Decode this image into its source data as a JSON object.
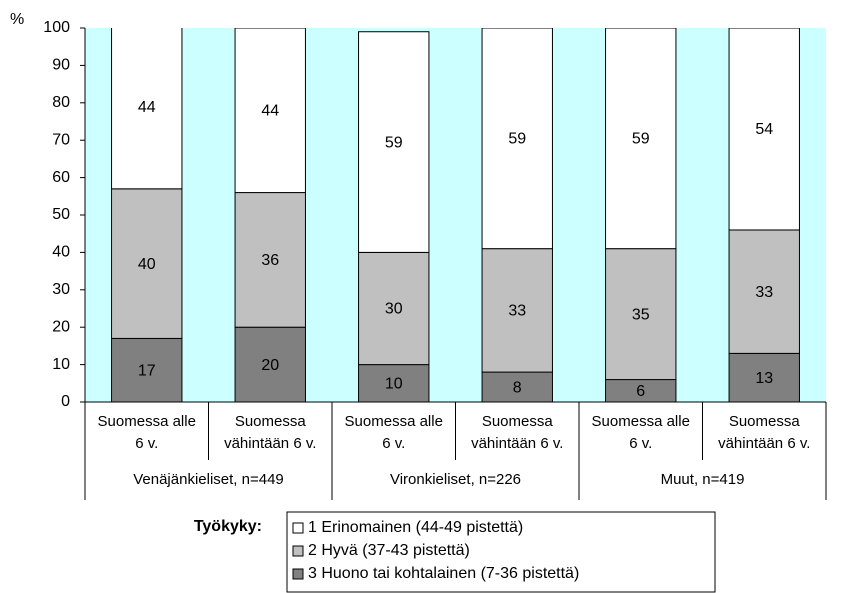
{
  "chart_data": {
    "type": "stacked_bar",
    "ylabel": "%",
    "categories": [
      "Suomessa alle 6 v.",
      "Suomessa vähintään 6 v.",
      "Suomessa alle 6 v.",
      "Suomessa vähintään 6 v.",
      "Suomessa alle 6 v.",
      "Suomessa vähintään 6 v."
    ],
    "groups": [
      "Venäjänkieliset, n=449",
      "Vironkieliset, n=226",
      "Muut, n=419"
    ],
    "series": [
      {
        "name": "1 Erinomainen (44-49 pistettä)",
        "color": "#ffffff",
        "values": [
          44,
          44,
          59,
          59,
          59,
          54
        ]
      },
      {
        "name": "2 Hyvä (37-43 pistettä)",
        "color": "#c0c0c0",
        "values": [
          40,
          36,
          30,
          33,
          35,
          33
        ]
      },
      {
        "name": "3 Huono tai kohtalainen (7-36 pistettä)",
        "color": "#808080",
        "values": [
          17,
          20,
          10,
          8,
          6,
          13
        ]
      }
    ],
    "legend_title": "Työkyky:",
    "background": "#ccffff",
    "ylim": [
      0,
      100
    ],
    "yticks": [
      0,
      10,
      20,
      30,
      40,
      50,
      60,
      70,
      80,
      90,
      100
    ]
  }
}
